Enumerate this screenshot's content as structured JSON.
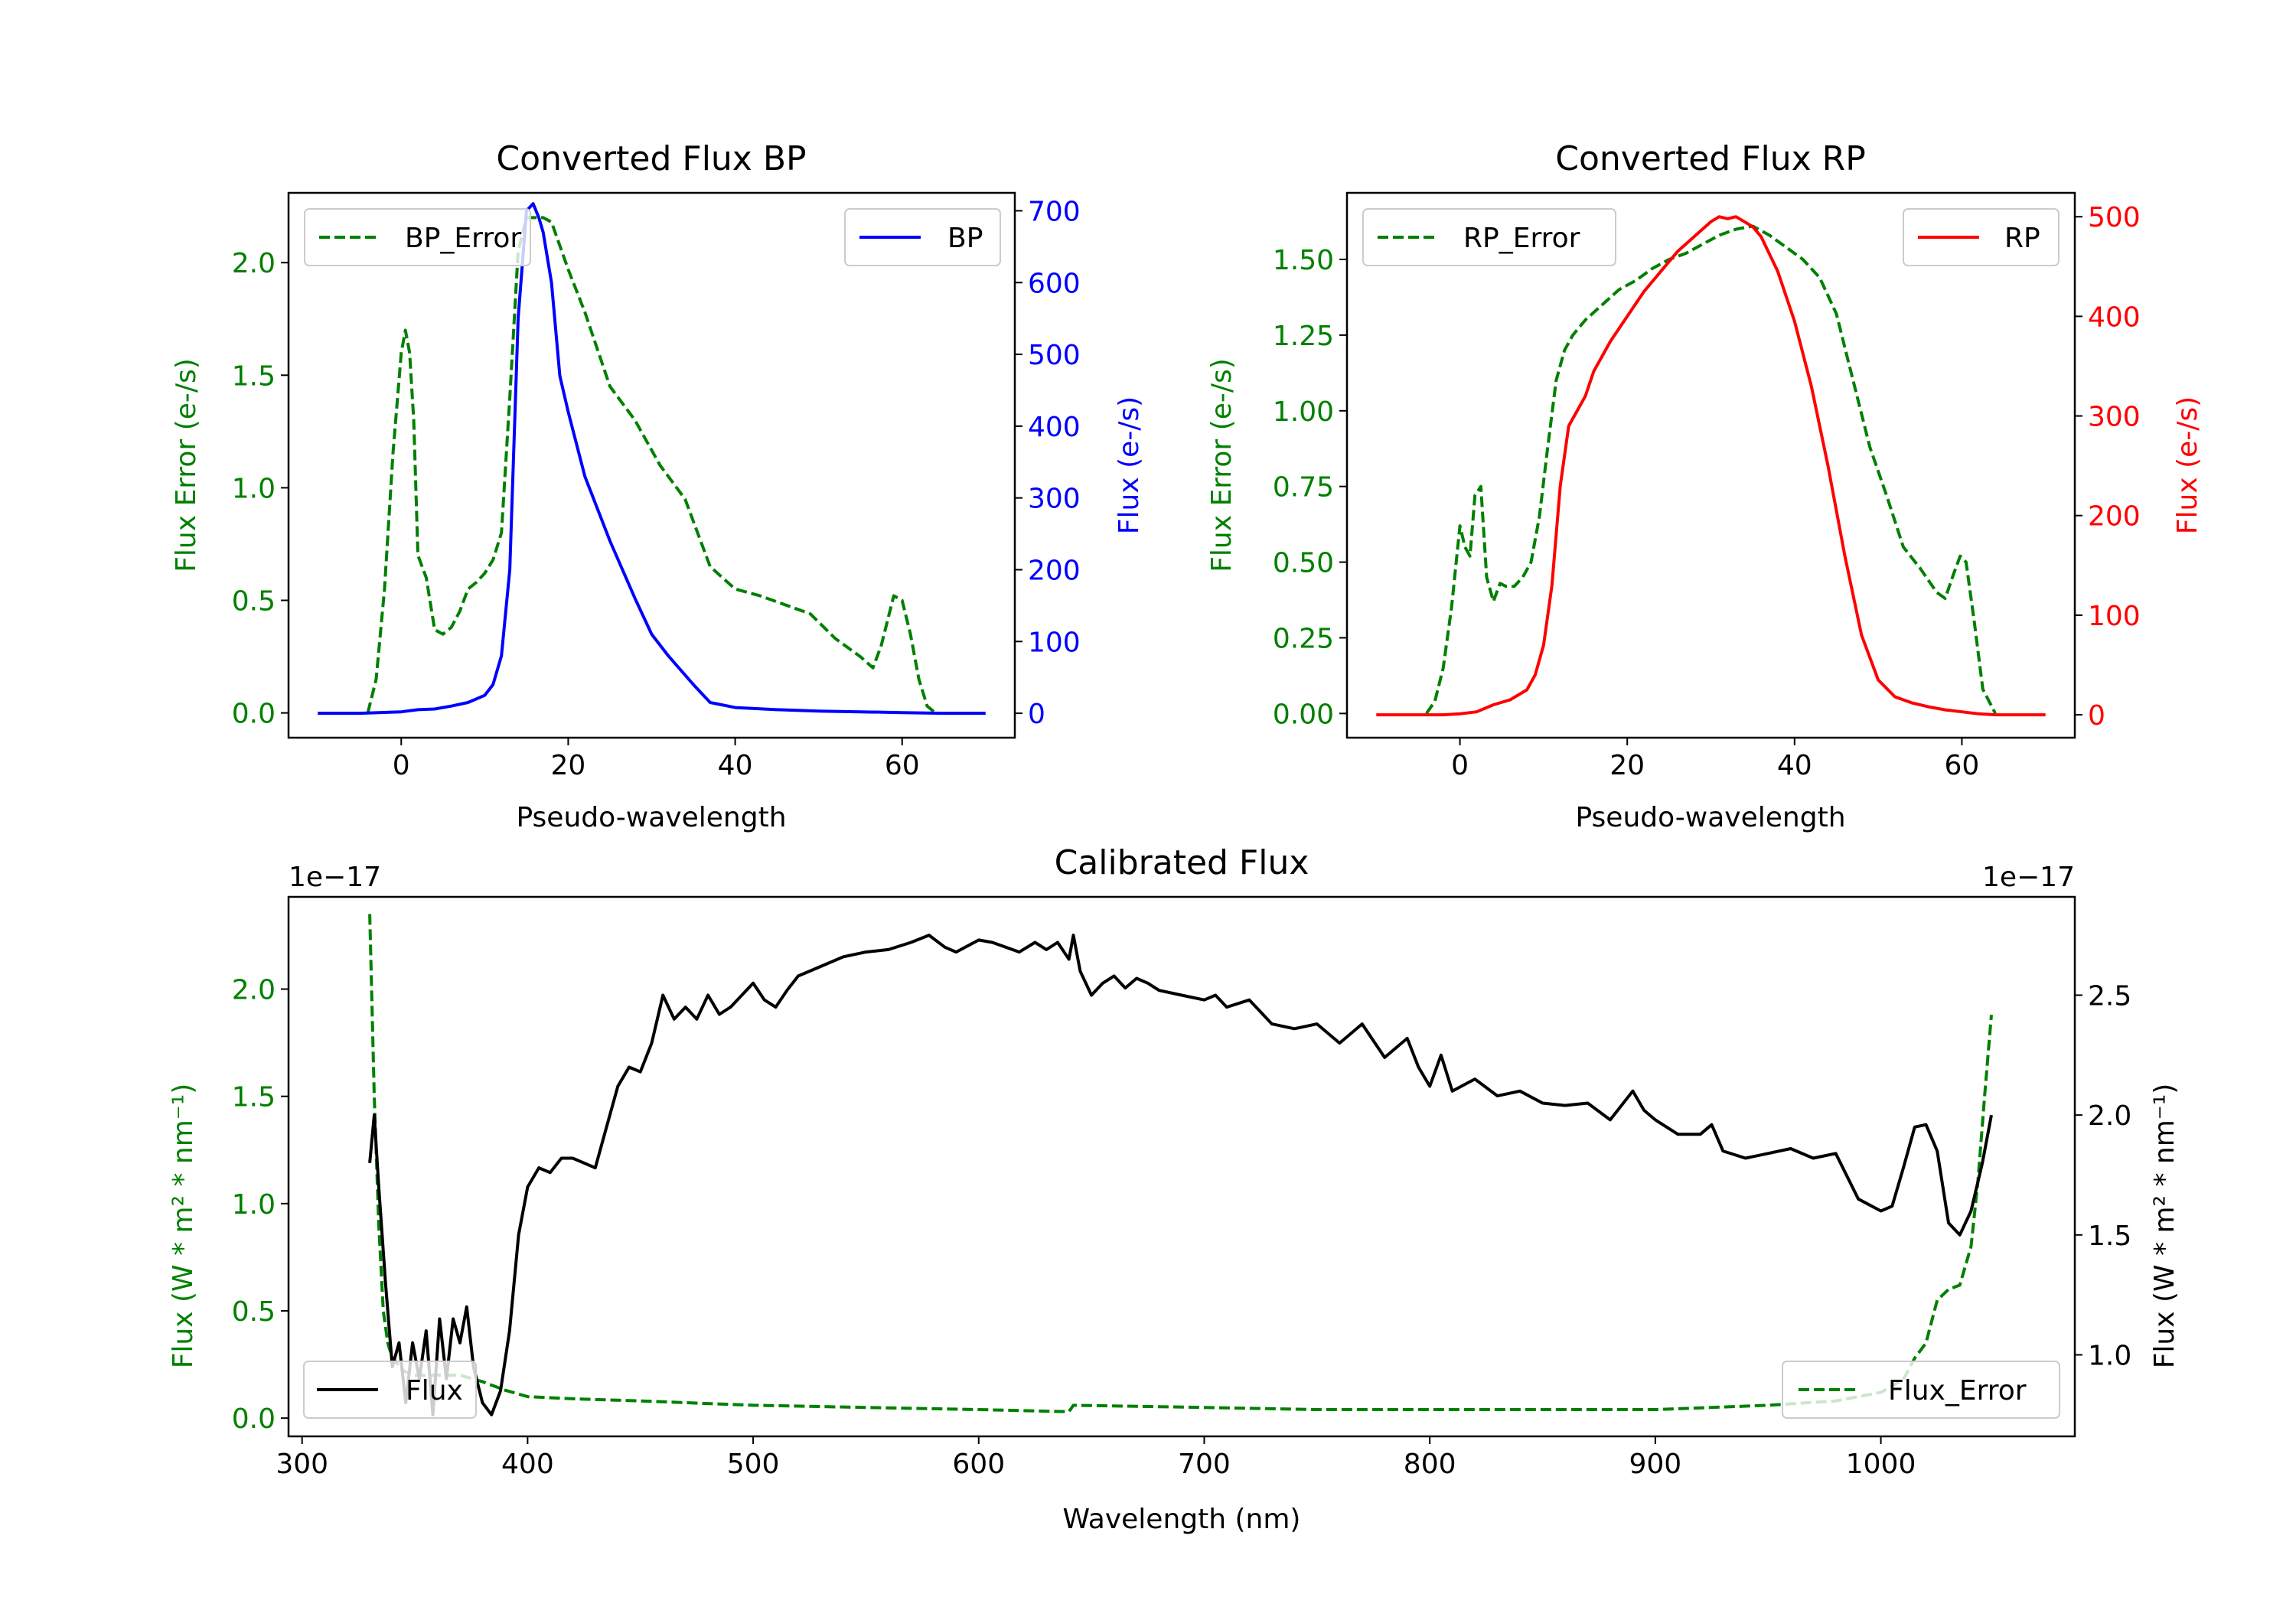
{
  "colors": {
    "green": "#008000",
    "blue": "#0000ff",
    "red": "#ff0000",
    "black": "#000000",
    "axis": "#000000"
  },
  "chart_data": [
    {
      "id": "bp",
      "type": "line",
      "title": "Converted Flux BP",
      "xlabel": "Pseudo-wavelength",
      "ylabel_left": "Flux Error (e-/s)",
      "ylabel_right": "Flux (e-/s)",
      "xlim": [
        -13.5,
        73.5
      ],
      "ylim_left": [
        -0.11,
        2.31
      ],
      "ylim_right": [
        -34,
        725
      ],
      "xticks": [
        0,
        20,
        40,
        60
      ],
      "yticks_left": [
        0.0,
        0.5,
        1.0,
        1.5,
        2.0
      ],
      "yticks_right": [
        0,
        100,
        200,
        300,
        400,
        500,
        600,
        700
      ],
      "legend_left": "BP_Error",
      "legend_right": "BP",
      "series": [
        {
          "name": "BP_Error",
          "axis": "left",
          "style": "dashed",
          "color": "green",
          "x": [
            -4,
            -3,
            -2,
            -1,
            0,
            0.5,
            1,
            1.5,
            2,
            3,
            4,
            5,
            6,
            7,
            8,
            9,
            10,
            11,
            12,
            13,
            14,
            15,
            16,
            17,
            18,
            20,
            22,
            25,
            28,
            31,
            34,
            37,
            40,
            43,
            46,
            49,
            52,
            55,
            56.5,
            57.5,
            59,
            60,
            61,
            62,
            63,
            64
          ],
          "y": [
            0.0,
            0.15,
            0.55,
            1.15,
            1.6,
            1.7,
            1.6,
            1.3,
            0.7,
            0.6,
            0.37,
            0.35,
            0.38,
            0.45,
            0.55,
            0.58,
            0.62,
            0.68,
            0.8,
            1.4,
            2.05,
            2.2,
            2.2,
            2.2,
            2.18,
            1.97,
            1.78,
            1.45,
            1.3,
            1.1,
            0.95,
            0.65,
            0.55,
            0.52,
            0.48,
            0.44,
            0.33,
            0.25,
            0.2,
            0.3,
            0.52,
            0.5,
            0.35,
            0.15,
            0.03,
            0.0
          ]
        },
        {
          "name": "BP",
          "axis": "right",
          "style": "solid",
          "color": "blue",
          "x": [
            -10,
            -5,
            0,
            2,
            4,
            6,
            8,
            10,
            11,
            12,
            13,
            14,
            15,
            15.8,
            16.5,
            17,
            18,
            19,
            20,
            22,
            25,
            28,
            30,
            32,
            35,
            37,
            40,
            45,
            50,
            55,
            60,
            65,
            70
          ],
          "y": [
            0,
            0,
            2,
            5,
            6,
            10,
            15,
            25,
            40,
            80,
            200,
            550,
            700,
            710,
            690,
            670,
            600,
            470,
            420,
            330,
            240,
            160,
            110,
            80,
            40,
            15,
            8,
            5,
            3,
            2,
            1,
            0,
            0
          ]
        }
      ]
    },
    {
      "id": "rp",
      "type": "line",
      "title": "Converted Flux RP",
      "xlabel": "Pseudo-wavelength",
      "ylabel_left": "Flux Error (e-/s)",
      "ylabel_right": "Flux (e-/s)",
      "xlim": [
        -13.5,
        73.5
      ],
      "ylim_left": [
        -0.08,
        1.72
      ],
      "ylim_right": [
        -23,
        524
      ],
      "xticks": [
        0,
        20,
        40,
        60
      ],
      "yticks_left": [
        0.0,
        0.25,
        0.5,
        0.75,
        1.0,
        1.25,
        1.5
      ],
      "yticks_right": [
        0,
        100,
        200,
        300,
        400,
        500
      ],
      "legend_left": "RP_Error",
      "legend_right": "RP",
      "series": [
        {
          "name": "RP_Error",
          "axis": "left",
          "style": "dashed",
          "color": "green",
          "x": [
            -4,
            -3,
            -2,
            -1,
            0,
            0.6,
            1.2,
            1.8,
            2.5,
            3.2,
            4,
            4.8,
            5.5,
            6.5,
            7.5,
            8.5,
            9.5,
            10.5,
            11.5,
            12.5,
            13.5,
            15,
            17,
            19,
            21,
            23,
            25,
            27,
            29,
            31,
            33,
            35,
            37,
            39,
            41,
            43,
            45,
            47,
            49,
            51,
            53,
            55,
            57,
            58,
            59,
            59.8,
            60.5,
            61.5,
            62.5,
            64
          ],
          "y": [
            0.0,
            0.04,
            0.15,
            0.35,
            0.62,
            0.55,
            0.52,
            0.72,
            0.75,
            0.45,
            0.37,
            0.43,
            0.42,
            0.42,
            0.45,
            0.5,
            0.65,
            0.88,
            1.1,
            1.2,
            1.25,
            1.3,
            1.35,
            1.4,
            1.43,
            1.47,
            1.5,
            1.52,
            1.55,
            1.58,
            1.6,
            1.61,
            1.58,
            1.54,
            1.5,
            1.44,
            1.32,
            1.1,
            0.88,
            0.72,
            0.55,
            0.48,
            0.4,
            0.38,
            0.46,
            0.52,
            0.5,
            0.3,
            0.08,
            0.0
          ]
        },
        {
          "name": "RP",
          "axis": "right",
          "style": "solid",
          "color": "red",
          "x": [
            -10,
            -5,
            -2,
            0,
            2,
            4,
            6,
            8,
            9,
            10,
            11,
            12,
            13,
            14,
            15,
            16,
            17,
            18,
            20,
            22,
            24,
            26,
            28,
            30,
            31,
            32,
            33,
            34,
            35,
            36,
            38,
            40,
            42,
            44,
            46,
            48,
            50,
            52,
            54,
            56,
            58,
            60,
            62,
            64,
            70
          ],
          "y": [
            0,
            0,
            0,
            1,
            3,
            10,
            15,
            25,
            40,
            70,
            130,
            230,
            290,
            305,
            320,
            345,
            360,
            375,
            400,
            425,
            445,
            465,
            480,
            495,
            500,
            498,
            500,
            495,
            490,
            480,
            445,
            395,
            330,
            250,
            160,
            80,
            35,
            18,
            12,
            8,
            5,
            3,
            1,
            0,
            0
          ]
        }
      ]
    },
    {
      "id": "calibrated",
      "type": "line",
      "title": "Calibrated Flux",
      "xlabel": "Wavelength (nm)",
      "ylabel_left": "Flux (W * m² * nm⁻¹)",
      "ylabel_right": "Flux (W * m² * nm⁻¹)",
      "offset_left": "1e−17",
      "offset_right": "1e−17",
      "xlim": [
        294,
        1086
      ],
      "ylim_left": [
        -0.085,
        2.43
      ],
      "ylim_right": [
        0.66,
        2.91
      ],
      "xticks": [
        300,
        400,
        500,
        600,
        700,
        800,
        900,
        1000
      ],
      "yticks_left": [
        0.0,
        0.5,
        1.0,
        1.5,
        2.0
      ],
      "yticks_right": [
        1.0,
        1.5,
        2.0,
        2.5
      ],
      "legend_left": "Flux",
      "legend_right": "Flux_Error",
      "series": [
        {
          "name": "Flux_Error",
          "axis": "left",
          "style": "dashed",
          "color": "green",
          "x": [
            330,
            332,
            334,
            336,
            338,
            340,
            345,
            350,
            360,
            370,
            380,
            390,
            400,
            420,
            450,
            500,
            550,
            600,
            640,
            642,
            700,
            750,
            800,
            850,
            900,
            950,
            980,
            1000,
            1010,
            1015,
            1020,
            1025,
            1030,
            1035,
            1040,
            1043,
            1046,
            1049
          ],
          "y": [
            2.35,
            1.5,
            0.9,
            0.5,
            0.35,
            0.28,
            0.22,
            0.2,
            0.2,
            0.2,
            0.17,
            0.13,
            0.1,
            0.09,
            0.08,
            0.06,
            0.05,
            0.04,
            0.03,
            0.06,
            0.05,
            0.04,
            0.04,
            0.04,
            0.04,
            0.06,
            0.08,
            0.12,
            0.18,
            0.28,
            0.35,
            0.55,
            0.6,
            0.62,
            0.8,
            1.1,
            1.5,
            1.88
          ]
        },
        {
          "name": "Flux",
          "axis": "right",
          "style": "solid",
          "color": "black",
          "x": [
            330,
            332,
            334,
            337,
            340,
            343,
            346,
            349,
            352,
            355,
            358,
            361,
            364,
            367,
            370,
            373,
            376,
            380,
            384,
            388,
            392,
            396,
            400,
            405,
            410,
            415,
            420,
            425,
            430,
            435,
            440,
            445,
            450,
            455,
            460,
            465,
            470,
            475,
            480,
            485,
            490,
            495,
            500,
            505,
            510,
            515,
            520,
            525,
            530,
            540,
            550,
            560,
            570,
            578,
            585,
            590,
            600,
            606,
            612,
            618,
            625,
            630,
            635,
            640,
            642,
            645,
            650,
            655,
            660,
            665,
            670,
            675,
            680,
            690,
            700,
            705,
            710,
            720,
            730,
            740,
            750,
            760,
            770,
            780,
            790,
            795,
            800,
            805,
            810,
            820,
            830,
            840,
            850,
            860,
            870,
            880,
            890,
            895,
            900,
            910,
            920,
            925,
            930,
            940,
            950,
            960,
            970,
            980,
            990,
            1000,
            1005,
            1010,
            1015,
            1020,
            1025,
            1030,
            1035,
            1040,
            1045,
            1049
          ],
          "y": [
            1.8,
            2.0,
            1.7,
            1.3,
            0.95,
            1.05,
            0.8,
            1.05,
            0.9,
            1.1,
            0.75,
            1.15,
            0.9,
            1.15,
            1.05,
            1.2,
            0.95,
            0.8,
            0.75,
            0.85,
            1.1,
            1.5,
            1.7,
            1.78,
            1.76,
            1.82,
            1.82,
            1.8,
            1.78,
            1.95,
            2.12,
            2.2,
            2.18,
            2.3,
            2.5,
            2.4,
            2.45,
            2.4,
            2.5,
            2.42,
            2.45,
            2.5,
            2.55,
            2.48,
            2.45,
            2.52,
            2.58,
            2.6,
            2.62,
            2.66,
            2.68,
            2.69,
            2.72,
            2.75,
            2.7,
            2.68,
            2.73,
            2.72,
            2.7,
            2.68,
            2.72,
            2.69,
            2.72,
            2.65,
            2.75,
            2.6,
            2.5,
            2.55,
            2.58,
            2.53,
            2.57,
            2.55,
            2.52,
            2.5,
            2.48,
            2.5,
            2.45,
            2.48,
            2.38,
            2.36,
            2.38,
            2.3,
            2.38,
            2.24,
            2.32,
            2.2,
            2.12,
            2.25,
            2.1,
            2.15,
            2.08,
            2.1,
            2.05,
            2.04,
            2.05,
            1.98,
            2.1,
            2.02,
            1.98,
            1.92,
            1.92,
            1.96,
            1.85,
            1.82,
            1.84,
            1.86,
            1.82,
            1.84,
            1.65,
            1.6,
            1.62,
            1.78,
            1.95,
            1.96,
            1.85,
            1.55,
            1.5,
            1.6,
            1.8,
            2.0
          ]
        }
      ]
    }
  ]
}
